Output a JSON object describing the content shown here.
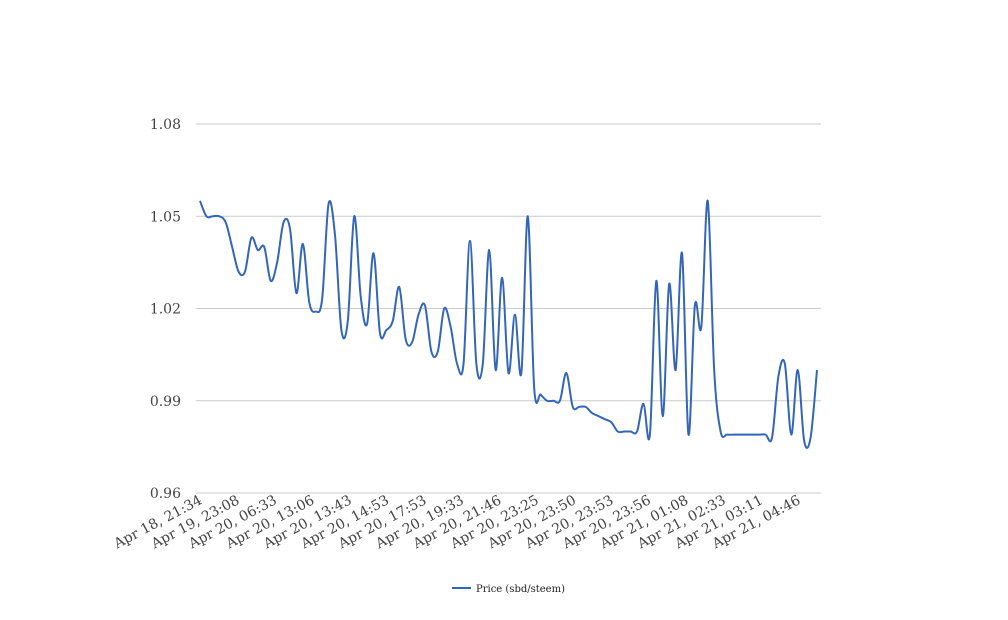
{
  "chart_data": {
    "type": "line",
    "title": "",
    "xlabel": "",
    "ylabel": "",
    "ylim": [
      0.96,
      1.08
    ],
    "yticks": [
      "0.96",
      "0.99",
      "1.02",
      "1.05",
      "1.08"
    ],
    "ytick_values": [
      0.96,
      0.99,
      1.02,
      1.05,
      1.08
    ],
    "xtick_labels": [
      "Apr 18, 21:34",
      "Apr 19, 23:08",
      "Apr 20, 06:33",
      "Apr 20, 13:06",
      "Apr 20, 13:43",
      "Apr 20, 14:53",
      "Apr 20, 17:53",
      "Apr 20, 19:33",
      "Apr 20, 21:46",
      "Apr 20, 23:25",
      "Apr 20, 23:50",
      "Apr 20, 23:53",
      "Apr 20, 23:56",
      "Apr 21, 01:08",
      "Apr 21, 02:33",
      "Apr 21, 03:11",
      "Apr 21, 04:46"
    ],
    "grid": true,
    "legend_position": "bottom-center",
    "series_color": "#3366bb",
    "series": [
      {
        "name": "Price (sbd/steem)",
        "values": [
          1.055,
          1.05,
          1.05,
          1.05,
          1.048,
          1.04,
          1.032,
          1.032,
          1.043,
          1.039,
          1.04,
          1.029,
          1.035,
          1.048,
          1.046,
          1.025,
          1.041,
          1.022,
          1.019,
          1.023,
          1.054,
          1.044,
          1.013,
          1.016,
          1.05,
          1.024,
          1.015,
          1.038,
          1.012,
          1.013,
          1.016,
          1.027,
          1.01,
          1.009,
          1.018,
          1.021,
          1.006,
          1.006,
          1.02,
          1.014,
          1.002,
          1.002,
          1.042,
          1.002,
          1.002,
          1.039,
          1.0,
          1.03,
          0.999,
          1.018,
          0.999,
          1.05,
          0.994,
          0.992,
          0.99,
          0.99,
          0.99,
          0.999,
          0.988,
          0.988,
          0.988,
          0.986,
          0.985,
          0.984,
          0.983,
          0.98,
          0.98,
          0.98,
          0.98,
          0.989,
          0.979,
          1.029,
          0.985,
          1.028,
          1.0,
          1.038,
          0.979,
          1.021,
          1.014,
          1.055,
          1.0,
          0.98,
          0.979,
          0.979,
          0.979,
          0.979,
          0.979,
          0.979,
          0.979,
          0.978,
          0.998,
          1.002,
          0.979,
          1.0,
          0.977,
          0.978,
          1.0
        ]
      }
    ]
  }
}
